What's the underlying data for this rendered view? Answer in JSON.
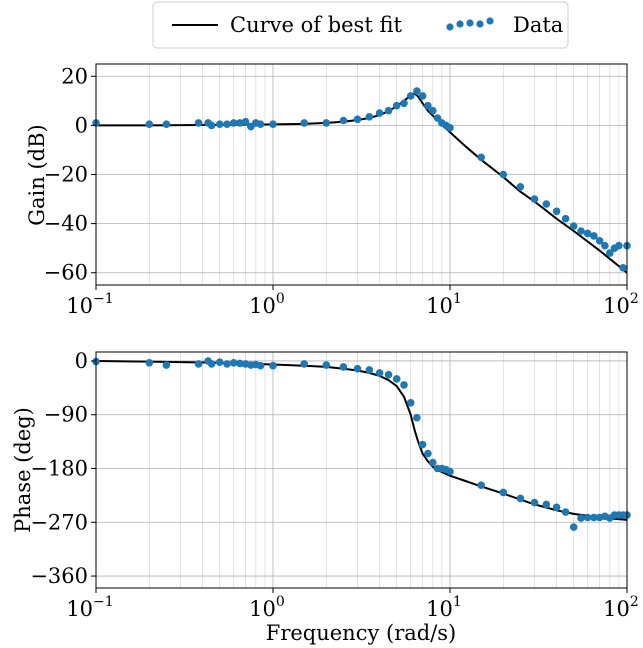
{
  "legend": {
    "fit_label": "Curve of best fit",
    "data_label": "Data",
    "placement": "top-center, outside plots"
  },
  "colors": {
    "fit": "#000000",
    "data": "#1f77b4",
    "grid": "#b0b0b0"
  },
  "chart_data": [
    {
      "type": "line",
      "ylabel": "Gain (dB)",
      "xlabel": "",
      "xscale": "log",
      "xlim": [
        0.1,
        100
      ],
      "ylim": [
        -65,
        25
      ],
      "grid": true,
      "x_ticks": [
        {
          "base": "10",
          "exp": "−1"
        },
        {
          "base": "10",
          "exp": "0"
        },
        {
          "base": "10",
          "exp": "1"
        },
        {
          "base": "10",
          "exp": "2"
        }
      ],
      "y_ticks": [
        "20",
        "0",
        "−20",
        "−40",
        "−60"
      ],
      "y_tick_values": [
        20,
        0,
        -20,
        -40,
        -60
      ],
      "series": [
        {
          "name": "Curve of best fit",
          "kind": "line",
          "x": [
            0.1,
            0.2,
            0.5,
            1,
            1.5,
            2,
            2.5,
            3,
            3.5,
            4,
            4.5,
            5,
            5.5,
            6,
            6.3,
            6.6,
            7,
            7.5,
            8,
            8.5,
            9,
            10,
            12,
            15,
            20,
            25,
            30,
            40,
            50,
            70,
            100
          ],
          "y": [
            0,
            0,
            0.2,
            0.4,
            0.6,
            1,
            1.5,
            2.2,
            3,
            4.2,
            5.8,
            7.8,
            10,
            12.2,
            13,
            11.8,
            9,
            6,
            4,
            2.2,
            0.5,
            -2.8,
            -8,
            -14,
            -21,
            -27,
            -31,
            -38,
            -43,
            -51,
            -60
          ]
        },
        {
          "name": "Data",
          "kind": "scatter",
          "x": [
            0.1,
            0.2,
            0.25,
            0.38,
            0.43,
            0.45,
            0.5,
            0.55,
            0.6,
            0.65,
            0.7,
            0.75,
            0.8,
            0.85,
            1.0,
            1.5,
            2.0,
            2.5,
            3.0,
            3.5,
            4.0,
            4.5,
            5.0,
            5.5,
            6.0,
            6.5,
            7.0,
            7.5,
            8.0,
            8.5,
            9.0,
            9.5,
            10,
            15,
            20,
            25,
            30,
            35,
            40,
            45,
            50,
            55,
            60,
            65,
            70,
            75,
            80,
            85,
            90,
            95,
            100
          ],
          "y": [
            1,
            0.5,
            0.5,
            1,
            1,
            0,
            0.5,
            0.5,
            1,
            1,
            1.5,
            -0.5,
            1,
            0.5,
            0.5,
            1,
            1,
            2,
            2.5,
            3.5,
            5,
            6,
            8,
            9,
            12,
            14,
            12,
            8,
            6,
            3,
            1,
            0,
            -1,
            -13,
            -20,
            -25,
            -30,
            -32,
            -35,
            -38,
            -41,
            -43,
            -44,
            -45,
            -47,
            -49,
            -52,
            -50,
            -49,
            -58,
            -49
          ]
        }
      ]
    },
    {
      "type": "line",
      "ylabel": "Phase (deg)",
      "xlabel": "Frequency (rad/s)",
      "xscale": "log",
      "xlim": [
        0.1,
        100
      ],
      "ylim": [
        -380,
        15
      ],
      "grid": true,
      "x_ticks": [
        {
          "base": "10",
          "exp": "−1"
        },
        {
          "base": "10",
          "exp": "0"
        },
        {
          "base": "10",
          "exp": "1"
        },
        {
          "base": "10",
          "exp": "2"
        }
      ],
      "y_ticks": [
        "0",
        "−90",
        "−180",
        "−270",
        "−360"
      ],
      "y_tick_values": [
        0,
        -90,
        -180,
        -270,
        -360
      ],
      "series": [
        {
          "name": "Curve of best fit",
          "kind": "line",
          "x": [
            0.1,
            0.2,
            0.5,
            1,
            1.5,
            2,
            2.5,
            3,
            3.5,
            4,
            4.5,
            5,
            5.5,
            6,
            6.3,
            6.6,
            7,
            7.5,
            8,
            8.5,
            9,
            10,
            12,
            15,
            20,
            25,
            30,
            40,
            50,
            70,
            100
          ],
          "y": [
            0,
            -1,
            -3,
            -6,
            -8,
            -10,
            -13,
            -16,
            -20,
            -25,
            -32,
            -42,
            -60,
            -90,
            -115,
            -135,
            -155,
            -168,
            -177,
            -182,
            -186,
            -192,
            -200,
            -210,
            -222,
            -232,
            -240,
            -250,
            -256,
            -262,
            -266
          ]
        },
        {
          "name": "Data",
          "kind": "scatter",
          "x": [
            0.1,
            0.2,
            0.25,
            0.38,
            0.43,
            0.45,
            0.5,
            0.55,
            0.6,
            0.65,
            0.7,
            0.75,
            0.8,
            0.85,
            1.0,
            1.5,
            2.0,
            2.5,
            3.0,
            3.5,
            4.0,
            4.5,
            5.0,
            5.5,
            6.0,
            6.5,
            7.0,
            7.5,
            8.0,
            8.5,
            9.0,
            9.5,
            10,
            15,
            20,
            25,
            30,
            35,
            40,
            45,
            50,
            55,
            60,
            65,
            70,
            75,
            80,
            85,
            90,
            95,
            100
          ],
          "y": [
            -1,
            -3,
            -7,
            -5,
            0,
            -5,
            -2,
            -5,
            -3,
            -4,
            -5,
            -7,
            -6,
            -8,
            -8,
            -5,
            -7,
            -10,
            -13,
            -15,
            -20,
            -23,
            -30,
            -40,
            -70,
            -95,
            -140,
            -155,
            -170,
            -180,
            -180,
            -182,
            -185,
            -208,
            -220,
            -230,
            -237,
            -240,
            -245,
            -253,
            -278,
            -263,
            -262,
            -262,
            -262,
            -260,
            -263,
            -258,
            -258,
            -258,
            -258
          ]
        }
      ]
    }
  ]
}
